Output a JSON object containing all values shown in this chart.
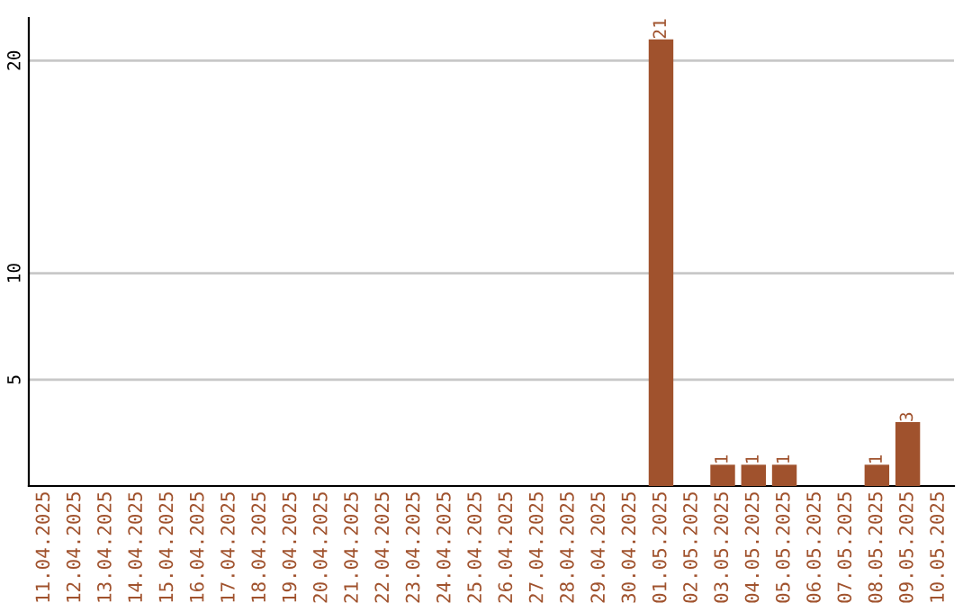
{
  "chart_data": {
    "type": "bar",
    "categories": [
      "11.04.2025",
      "12.04.2025",
      "13.04.2025",
      "14.04.2025",
      "15.04.2025",
      "16.04.2025",
      "17.04.2025",
      "18.04.2025",
      "19.04.2025",
      "20.04.2025",
      "21.04.2025",
      "22.04.2025",
      "23.04.2025",
      "24.04.2025",
      "25.04.2025",
      "26.04.2025",
      "27.04.2025",
      "28.04.2025",
      "29.04.2025",
      "30.04.2025",
      "01.05.2025",
      "02.05.2025",
      "03.05.2025",
      "04.05.2025",
      "05.05.2025",
      "06.05.2025",
      "07.05.2025",
      "08.05.2025",
      "09.05.2025",
      "10.05.2025"
    ],
    "values": [
      0,
      0,
      0,
      0,
      0,
      0,
      0,
      0,
      0,
      0,
      0,
      0,
      0,
      0,
      0,
      0,
      0,
      0,
      0,
      0,
      21,
      0,
      1,
      1,
      1,
      0,
      0,
      1,
      3,
      0
    ],
    "value_labels": [
      null,
      null,
      null,
      null,
      null,
      null,
      null,
      null,
      null,
      null,
      null,
      null,
      null,
      null,
      null,
      null,
      null,
      null,
      null,
      null,
      "21",
      null,
      "1",
      "1",
      "1",
      null,
      null,
      "1",
      "3",
      null
    ],
    "color": "#a0522d",
    "ylim": [
      0,
      22
    ],
    "yticks": [
      5,
      10,
      20
    ],
    "grid": "y"
  }
}
